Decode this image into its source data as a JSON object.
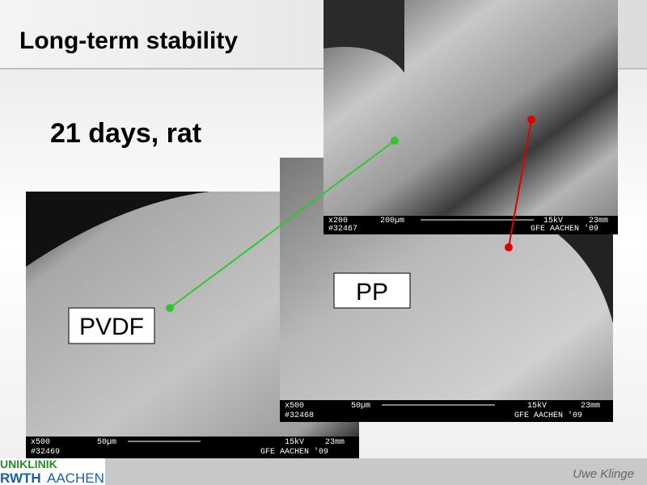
{
  "header": {
    "title": "Long-term stability"
  },
  "subtitle": "21 days, rat",
  "images": [
    {
      "magnification": "x200",
      "scale": "200µm",
      "voltage": "15kV",
      "distance": "23mm",
      "id": "#32467",
      "lab": "GFE AACHEN '09"
    },
    {
      "magnification": "x500",
      "scale": "50µm",
      "voltage": "15kV",
      "distance": "23mm",
      "id": "#32468",
      "lab": "GFE AACHEN '09"
    },
    {
      "magnification": "x500",
      "scale": "50µm",
      "voltage": "15kV",
      "distance": "23mm",
      "id": "#32469",
      "lab": "GFE AACHEN '09"
    }
  ],
  "labels": {
    "pvdf": "PVDF",
    "pp": "PP"
  },
  "logo": {
    "line1": "UNIKLINIK",
    "line2_bold": "RWTH",
    "line2": "AACHEN"
  },
  "footer": {
    "author": "Uwe Klinge"
  }
}
